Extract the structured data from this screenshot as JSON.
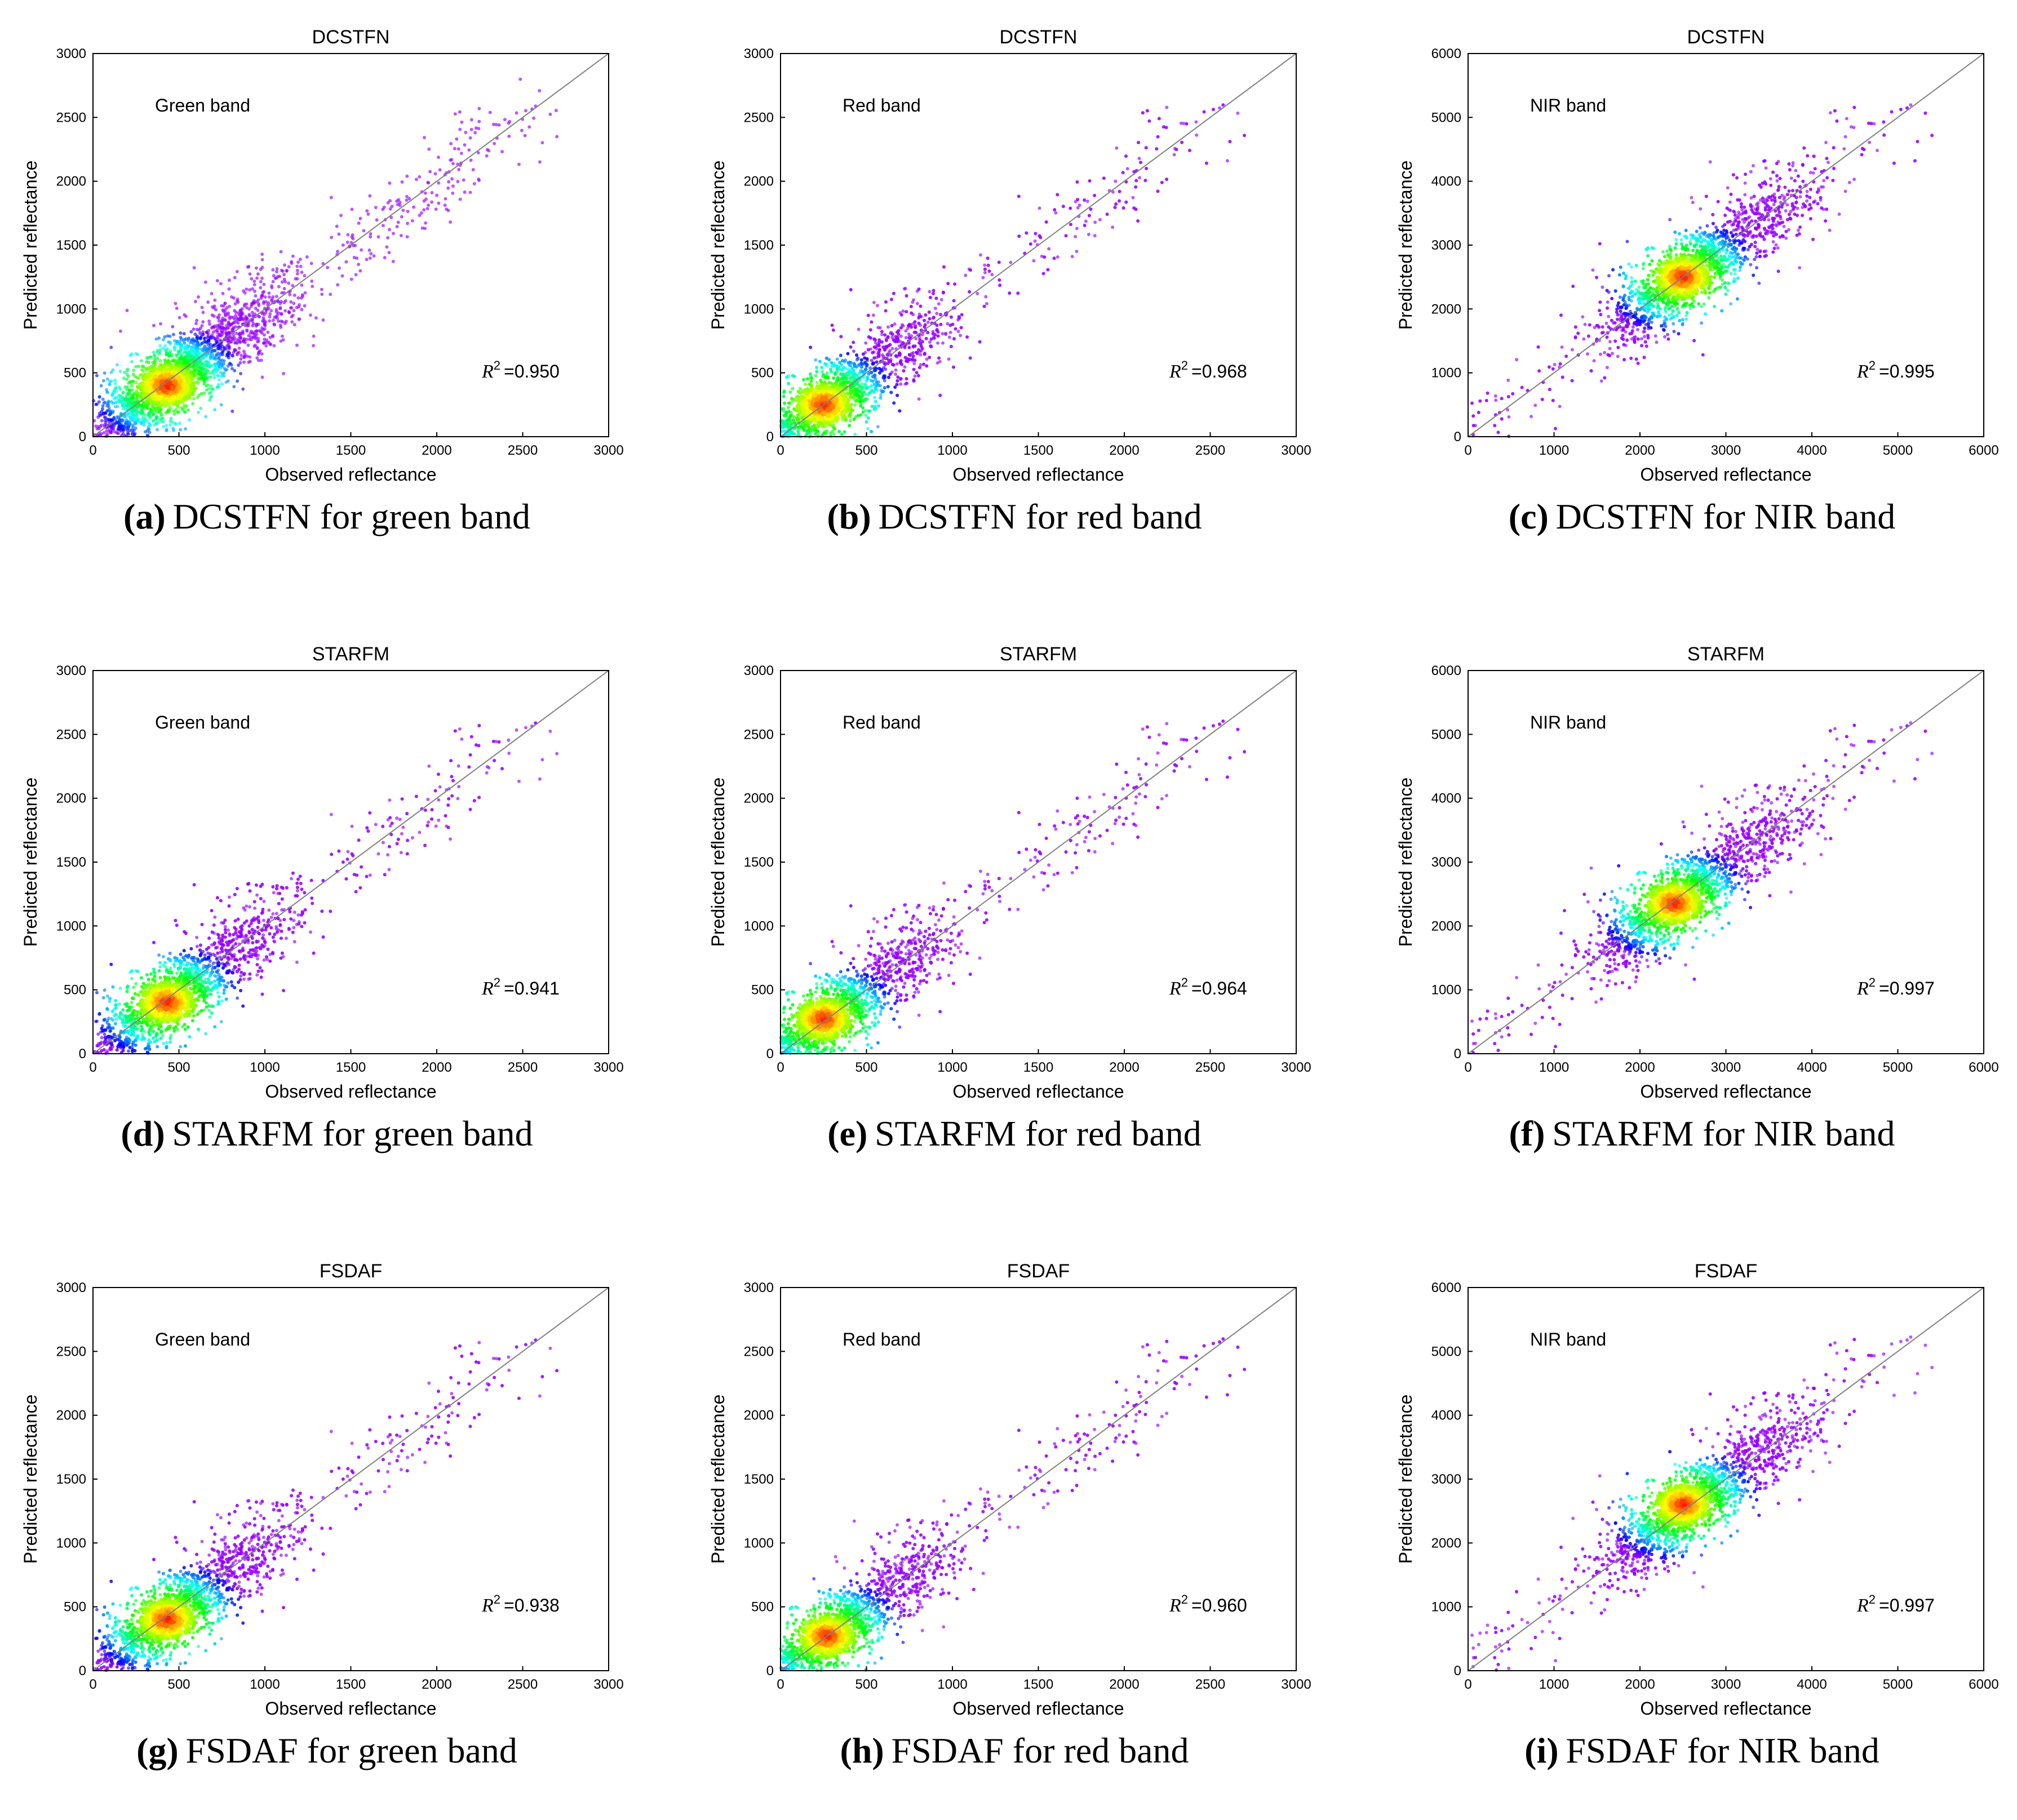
{
  "chart_data": [
    {
      "id": "a",
      "type": "scatter",
      "title": "DCSTFN",
      "band_label": "Green band",
      "xlabel": "Observed reflectance",
      "ylabel": "Predicted reflectance",
      "xlim": [
        0,
        3000
      ],
      "ylim": [
        0,
        3000
      ],
      "xticks": [
        0,
        500,
        1000,
        1500,
        2000,
        2500,
        3000
      ],
      "yticks": [
        0,
        500,
        1000,
        1500,
        2000,
        2500,
        3000
      ],
      "r2_symbol": "R",
      "r2_exp": "2",
      "r2_text": "=0.950",
      "hotspot": [
        430,
        400
      ],
      "caption_letter": "(a)",
      "caption_text": "DCSTFN for green band",
      "colors": {
        "low": "#7f00ff",
        "high": "#ff0000",
        "line": "#808080"
      }
    },
    {
      "id": "b",
      "type": "scatter",
      "title": "DCSTFN",
      "band_label": "Red band",
      "xlabel": "Observed reflectance",
      "ylabel": "Predicted reflectance",
      "xlim": [
        0,
        3000
      ],
      "ylim": [
        0,
        3000
      ],
      "xticks": [
        0,
        500,
        1000,
        1500,
        2000,
        2500,
        3000
      ],
      "yticks": [
        0,
        500,
        1000,
        1500,
        2000,
        2500,
        3000
      ],
      "r2_symbol": "R",
      "r2_exp": "2",
      "r2_text": "=0.968",
      "hotspot": [
        250,
        250
      ],
      "caption_letter": "(b)",
      "caption_text": "DCSTFN for red band",
      "colors": {
        "low": "#7f00ff",
        "high": "#ff0000",
        "line": "#808080"
      }
    },
    {
      "id": "c",
      "type": "scatter",
      "title": "DCSTFN",
      "band_label": "NIR band",
      "xlabel": "Observed reflectance",
      "ylabel": "Predicted reflectance",
      "xlim": [
        0,
        6000
      ],
      "ylim": [
        0,
        6000
      ],
      "xticks": [
        0,
        1000,
        2000,
        3000,
        4000,
        5000,
        6000
      ],
      "yticks": [
        0,
        1000,
        2000,
        3000,
        4000,
        5000,
        6000
      ],
      "r2_symbol": "R",
      "r2_exp": "2",
      "r2_text": "=0.995",
      "hotspot": [
        2500,
        2500
      ],
      "caption_letter": "(c)",
      "caption_text": "DCSTFN for NIR band",
      "colors": {
        "low": "#7f00ff",
        "high": "#ff0000",
        "line": "#808080"
      }
    },
    {
      "id": "d",
      "type": "scatter",
      "title": "STARFM",
      "band_label": "Green band",
      "xlabel": "Observed reflectance",
      "ylabel": "Predicted reflectance",
      "xlim": [
        0,
        3000
      ],
      "ylim": [
        0,
        3000
      ],
      "xticks": [
        0,
        500,
        1000,
        1500,
        2000,
        2500,
        3000
      ],
      "yticks": [
        0,
        500,
        1000,
        1500,
        2000,
        2500,
        3000
      ],
      "r2_symbol": "R",
      "r2_exp": "2",
      "r2_text": "=0.941",
      "hotspot": [
        430,
        400
      ],
      "caption_letter": "(d)",
      "caption_text": "STARFM for green band",
      "colors": {
        "low": "#7f00ff",
        "high": "#ff0000",
        "line": "#808080"
      }
    },
    {
      "id": "e",
      "type": "scatter",
      "title": "STARFM",
      "band_label": "Red band",
      "xlabel": "Observed reflectance",
      "ylabel": "Predicted reflectance",
      "xlim": [
        0,
        3000
      ],
      "ylim": [
        0,
        3000
      ],
      "xticks": [
        0,
        500,
        1000,
        1500,
        2000,
        2500,
        3000
      ],
      "yticks": [
        0,
        500,
        1000,
        1500,
        2000,
        2500,
        3000
      ],
      "r2_symbol": "R",
      "r2_exp": "2",
      "r2_text": "=0.964",
      "hotspot": [
        250,
        270
      ],
      "caption_letter": "(e)",
      "caption_text": "STARFM for red band",
      "colors": {
        "low": "#7f00ff",
        "high": "#ff0000",
        "line": "#808080"
      }
    },
    {
      "id": "f",
      "type": "scatter",
      "title": "STARFM",
      "band_label": "NIR band",
      "xlabel": "Observed reflectance",
      "ylabel": "Predicted reflectance",
      "xlim": [
        0,
        6000
      ],
      "ylim": [
        0,
        6000
      ],
      "xticks": [
        0,
        1000,
        2000,
        3000,
        4000,
        5000,
        6000
      ],
      "yticks": [
        0,
        1000,
        2000,
        3000,
        4000,
        5000,
        6000
      ],
      "r2_symbol": "R",
      "r2_exp": "2",
      "r2_text": "=0.997",
      "hotspot": [
        2400,
        2350
      ],
      "caption_letter": "(f)",
      "caption_text": "STARFM for NIR band",
      "colors": {
        "low": "#7f00ff",
        "high": "#ff0000",
        "line": "#808080"
      }
    },
    {
      "id": "g",
      "type": "scatter",
      "title": "FSDAF",
      "band_label": "Green band",
      "xlabel": "Observed reflectance",
      "ylabel": "Predicted reflectance",
      "xlim": [
        0,
        3000
      ],
      "ylim": [
        0,
        3000
      ],
      "xticks": [
        0,
        500,
        1000,
        1500,
        2000,
        2500,
        3000
      ],
      "yticks": [
        0,
        500,
        1000,
        1500,
        2000,
        2500,
        3000
      ],
      "r2_symbol": "R",
      "r2_exp": "2",
      "r2_text": "=0.938",
      "hotspot": [
        430,
        400
      ],
      "caption_letter": "(g)",
      "caption_text": "FSDAF for green band",
      "colors": {
        "low": "#7f00ff",
        "high": "#ff0000",
        "line": "#808080"
      }
    },
    {
      "id": "h",
      "type": "scatter",
      "title": "FSDAF",
      "band_label": "Red band",
      "xlabel": "Observed reflectance",
      "ylabel": "Predicted reflectance",
      "xlim": [
        0,
        3000
      ],
      "ylim": [
        0,
        3000
      ],
      "xticks": [
        0,
        500,
        1000,
        1500,
        2000,
        2500,
        3000
      ],
      "yticks": [
        0,
        500,
        1000,
        1500,
        2000,
        2500,
        3000
      ],
      "r2_symbol": "R",
      "r2_exp": "2",
      "r2_text": "=0.960",
      "hotspot": [
        270,
        270
      ],
      "caption_letter": "(h)",
      "caption_text": "FSDAF for red band",
      "colors": {
        "low": "#7f00ff",
        "high": "#ff0000",
        "line": "#808080"
      }
    },
    {
      "id": "i",
      "type": "scatter",
      "title": "FSDAF",
      "band_label": "NIR band",
      "xlabel": "Observed reflectance",
      "ylabel": "Predicted reflectance",
      "xlim": [
        0,
        6000
      ],
      "ylim": [
        0,
        6000
      ],
      "xticks": [
        0,
        1000,
        2000,
        3000,
        4000,
        5000,
        6000
      ],
      "yticks": [
        0,
        1000,
        2000,
        3000,
        4000,
        5000,
        6000
      ],
      "r2_symbol": "R",
      "r2_exp": "2",
      "r2_text": "=0.997",
      "hotspot": [
        2500,
        2600
      ],
      "caption_letter": "(i)",
      "caption_text": "FSDAF for NIR band",
      "colors": {
        "low": "#7f00ff",
        "high": "#ff0000",
        "line": "#808080"
      }
    }
  ]
}
